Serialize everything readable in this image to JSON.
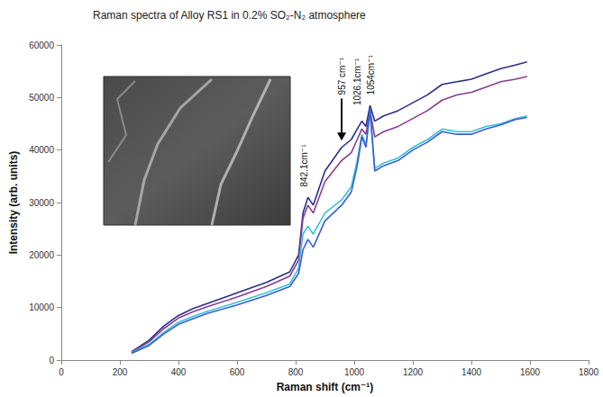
{
  "chart_data": {
    "type": "line",
    "title": "Raman spectra of Alloy RS1 in 0.2% SO₂-N₂ atmosphere",
    "x_label": "Raman shift (cm⁻¹)",
    "y_label": "Intensity (arb. units)",
    "x": [
      240,
      300,
      350,
      400,
      450,
      500,
      600,
      700,
      780,
      810,
      825,
      842,
      860,
      900,
      957,
      990,
      1010,
      1026,
      1040,
      1054,
      1070,
      1100,
      1150,
      1200,
      1250,
      1300,
      1350,
      1400,
      1450,
      1500,
      1550,
      1590
    ],
    "series": [
      {
        "color": "#2b2f8c",
        "values": [
          1600,
          3800,
          6500,
          8500,
          9800,
          10800,
          12800,
          14800,
          16800,
          20000,
          28000,
          31000,
          29500,
          36000,
          40500,
          42000,
          44000,
          45500,
          44500,
          48500,
          45500,
          46500,
          47500,
          49000,
          50500,
          52500,
          53000,
          53500,
          54500,
          55500,
          56200,
          56800
        ]
      },
      {
        "color": "#8b3b8f",
        "values": [
          1500,
          3500,
          6000,
          8000,
          9200,
          10200,
          12000,
          14000,
          16000,
          19000,
          27000,
          29500,
          28000,
          34000,
          38000,
          39500,
          42000,
          44000,
          43000,
          47500,
          42500,
          43500,
          44500,
          46000,
          47500,
          49500,
          50500,
          51000,
          52000,
          53000,
          53500,
          54000
        ]
      },
      {
        "color": "#35c3d8",
        "values": [
          1400,
          3000,
          5300,
          7200,
          8300,
          9300,
          11000,
          12800,
          14500,
          17500,
          24000,
          25500,
          24000,
          28000,
          30500,
          33000,
          38000,
          43000,
          41000,
          47000,
          36500,
          37500,
          38500,
          40500,
          42000,
          44000,
          43500,
          43500,
          44500,
          45000,
          46000,
          46500
        ]
      },
      {
        "color": "#3a5cd8",
        "values": [
          1300,
          2800,
          5000,
          6800,
          7900,
          8900,
          10500,
          12300,
          14000,
          16500,
          21000,
          23000,
          21500,
          26500,
          29500,
          32000,
          37000,
          42500,
          40500,
          48000,
          36000,
          37000,
          38000,
          40000,
          41500,
          43500,
          43000,
          43000,
          44000,
          44800,
          45800,
          46200
        ]
      }
    ],
    "xlim": [
      0,
      1800
    ],
    "xticks": [
      0,
      200,
      400,
      600,
      800,
      1000,
      1200,
      1400,
      1600,
      1800
    ],
    "ylim": [
      0,
      60000
    ],
    "yticks": [
      0,
      10000,
      20000,
      30000,
      40000,
      50000,
      60000
    ],
    "grid": false,
    "annotations": [
      {
        "text": "842.1cm⁻¹",
        "x": 828,
        "y": 33000
      },
      {
        "text": "957 cm⁻¹",
        "x": 957,
        "y": 50500,
        "arrow_to": 41800
      },
      {
        "text": "1026.1cm⁻¹",
        "x": 1012,
        "y": 48500
      },
      {
        "text": "1054cm⁻¹",
        "x": 1058,
        "y": 50500
      }
    ]
  }
}
